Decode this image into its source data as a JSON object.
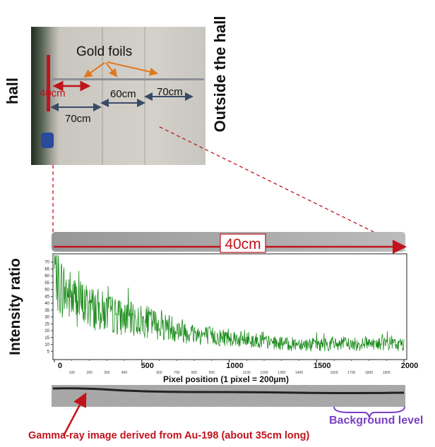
{
  "photo": {
    "label_hall": "hall",
    "label_outside": "Outside the hall",
    "label_gold": "Gold foils",
    "label_40": "40cm",
    "label_60": "60cm",
    "label_70_top": "70cm",
    "label_70_bottom": "70cm"
  },
  "strip_label": "40cm",
  "annotations": {
    "gamma_caption": "Gamma-ray image derived from Au-198 (about 35cm long)",
    "background_label": "Background level"
  },
  "colors": {
    "series": "#1a8a1a",
    "annotation_red": "#c0141c",
    "background_purple": "#7a3fc4",
    "dimension_arrow": "#3a4a66",
    "leader_orange": "#e07820"
  },
  "chart_data": {
    "type": "line",
    "xlabel": "Pixel position (1 pixel = 200µm)",
    "ylabel": "Intensity ratio",
    "xlim": [
      0,
      2000
    ],
    "ylim": [
      0,
      75
    ],
    "major_xticks": [
      0,
      500,
      1000,
      1500,
      2000
    ],
    "minor_xticks": [
      100,
      200,
      300,
      400,
      600,
      700,
      800,
      900,
      1100,
      1200,
      1300,
      1400,
      1600,
      1700,
      1800,
      1900
    ],
    "yticks": [
      5,
      10,
      15,
      20,
      25,
      30,
      35,
      40,
      45,
      50,
      55,
      60,
      65,
      70
    ],
    "grid": false,
    "series": [
      {
        "x": [
          0,
          50,
          100,
          150,
          200,
          250,
          300,
          350,
          400,
          450,
          500,
          550,
          600,
          650,
          700,
          750,
          800,
          850,
          900,
          950,
          1000,
          1050,
          1100,
          1150,
          1200,
          1250,
          1300,
          1350,
          1400,
          1450,
          1500,
          1550,
          1600,
          1650,
          1700,
          1750,
          1800,
          1850,
          1900,
          1950,
          2000
        ],
        "y": [
          60,
          50,
          44,
          40,
          38,
          35,
          33,
          31,
          29,
          28,
          27,
          26,
          24,
          23,
          21,
          20,
          18,
          17,
          16,
          15,
          16,
          14,
          13,
          13,
          12,
          11,
          11,
          10,
          11,
          10,
          10,
          10,
          10,
          11,
          10,
          10,
          12,
          10,
          11,
          10,
          10
        ]
      }
    ]
  }
}
